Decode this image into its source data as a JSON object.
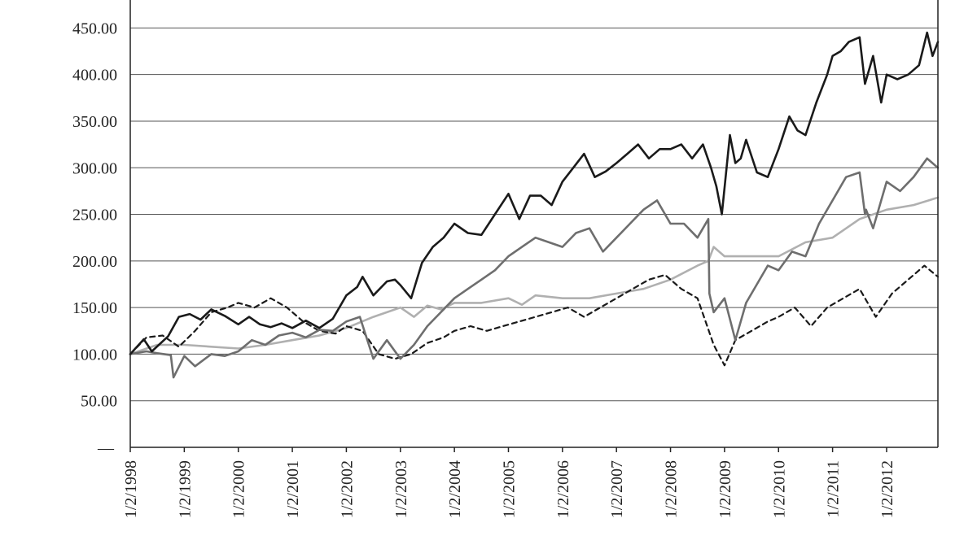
{
  "chart_data": {
    "type": "line",
    "title": "",
    "xlabel": "",
    "ylabel": "",
    "ylim": [
      0,
      480
    ],
    "grid": "horizontal",
    "y_ticks": [
      {
        "value": 0,
        "label": "—"
      },
      {
        "value": 50,
        "label": "50.00"
      },
      {
        "value": 100,
        "label": "100.00"
      },
      {
        "value": 150,
        "label": "150.00"
      },
      {
        "value": 200,
        "label": "200.00"
      },
      {
        "value": 250,
        "label": "250.00"
      },
      {
        "value": 300,
        "label": "300.00"
      },
      {
        "value": 350,
        "label": "350.00"
      },
      {
        "value": 400,
        "label": "400.00"
      },
      {
        "value": 450,
        "label": "450.00"
      }
    ],
    "x_ticks": [
      "1/2/1998",
      "1/2/1999",
      "1/2/2000",
      "1/2/2001",
      "1/2/2002",
      "1/2/2003",
      "1/2/2004",
      "1/2/2005",
      "1/2/2006",
      "1/2/2007",
      "1/2/2008",
      "1/2/2009",
      "1/2/2010",
      "1/2/2011",
      "1/2/2012"
    ],
    "xlim": [
      1998.0,
      2012.95
    ],
    "series": [
      {
        "color": "#1a1a1a",
        "style": "solid",
        "x": [
          1998.0,
          1998.25,
          1998.4,
          1998.7,
          1998.9,
          1999.1,
          1999.3,
          1999.5,
          1999.75,
          2000.0,
          2000.2,
          2000.4,
          2000.6,
          2000.8,
          2001.0,
          2001.25,
          2001.5,
          2001.75,
          2002.0,
          2002.2,
          2002.3,
          2002.5,
          2002.75,
          2002.9,
          2003.0,
          2003.2,
          2003.4,
          2003.6,
          2003.8,
          2004.0,
          2004.25,
          2004.5,
          2004.75,
          2005.0,
          2005.2,
          2005.4,
          2005.6,
          2005.8,
          2006.0,
          2006.2,
          2006.4,
          2006.6,
          2006.8,
          2007.0,
          2007.2,
          2007.4,
          2007.6,
          2007.8,
          2008.0,
          2008.2,
          2008.4,
          2008.6,
          2008.75,
          2008.85,
          2008.95,
          2009.1,
          2009.2,
          2009.3,
          2009.4,
          2009.6,
          2009.8,
          2010.0,
          2010.2,
          2010.35,
          2010.5,
          2010.7,
          2010.9,
          2011.0,
          2011.15,
          2011.3,
          2011.5,
          2011.6,
          2011.75,
          2011.9,
          2012.0,
          2012.2,
          2012.4,
          2012.6,
          2012.75,
          2012.85,
          2012.95
        ],
        "values": [
          100,
          116,
          103,
          119,
          140,
          143,
          137,
          148,
          141,
          132,
          140,
          132,
          129,
          133,
          128,
          136,
          128,
          138,
          163,
          172,
          183,
          163,
          178,
          180,
          174,
          160,
          198,
          215,
          225,
          240,
          230,
          228,
          250,
          272,
          245,
          270,
          270,
          260,
          285,
          300,
          315,
          290,
          296,
          305,
          315,
          325,
          310,
          320,
          320,
          325,
          310,
          325,
          300,
          280,
          250,
          335,
          305,
          310,
          330,
          295,
          290,
          320,
          355,
          340,
          335,
          370,
          400,
          420,
          425,
          435,
          440,
          390,
          420,
          370,
          400,
          395,
          400,
          410,
          445,
          420,
          435
        ]
      },
      {
        "color": "#6e6e6e",
        "style": "solid",
        "x": [
          1998.0,
          1998.3,
          1998.5,
          1998.75,
          1998.8,
          1999.0,
          1999.2,
          1999.5,
          1999.75,
          2000.0,
          2000.25,
          2000.5,
          2000.75,
          2001.0,
          2001.25,
          2001.5,
          2001.75,
          2002.0,
          2002.25,
          2002.5,
          2002.75,
          2003.0,
          2003.25,
          2003.5,
          2003.75,
          2004.0,
          2004.25,
          2004.5,
          2004.75,
          2005.0,
          2005.25,
          2005.5,
          2005.75,
          2006.0,
          2006.25,
          2006.5,
          2006.75,
          2007.0,
          2007.25,
          2007.5,
          2007.75,
          2008.0,
          2008.25,
          2008.5,
          2008.7,
          2008.72,
          2008.8,
          2009.0,
          2009.2,
          2009.4,
          2009.6,
          2009.8,
          2010.0,
          2010.25,
          2010.5,
          2010.75,
          2011.0,
          2011.25,
          2011.5,
          2011.6,
          2011.62,
          2011.75,
          2012.0,
          2012.25,
          2012.5,
          2012.75,
          2012.95
        ],
        "values": [
          100,
          103,
          101,
          99,
          75,
          98,
          87,
          100,
          98,
          103,
          115,
          110,
          120,
          123,
          118,
          126,
          125,
          135,
          140,
          95,
          115,
          95,
          110,
          130,
          145,
          160,
          170,
          180,
          190,
          205,
          215,
          225,
          220,
          215,
          230,
          235,
          210,
          225,
          240,
          255,
          265,
          240,
          240,
          225,
          245,
          165,
          145,
          160,
          115,
          155,
          175,
          195,
          190,
          210,
          205,
          240,
          265,
          290,
          295,
          250,
          255,
          235,
          285,
          275,
          290,
          310,
          300
        ]
      },
      {
        "color": "#b0b0b0",
        "style": "solid",
        "x": [
          1998.0,
          1998.5,
          1999.0,
          1999.5,
          2000.0,
          2000.5,
          2001.0,
          2001.5,
          2002.0,
          2002.5,
          2002.75,
          2003.0,
          2003.25,
          2003.5,
          2003.75,
          2004.0,
          2004.5,
          2005.0,
          2005.25,
          2005.5,
          2006.0,
          2006.5,
          2007.0,
          2007.5,
          2008.0,
          2008.5,
          2008.7,
          2008.8,
          2009.0,
          2009.5,
          2010.0,
          2010.5,
          2011.0,
          2011.5,
          2012.0,
          2012.5,
          2012.95
        ],
        "values": [
          100,
          110,
          110,
          108,
          106,
          110,
          115,
          120,
          128,
          140,
          145,
          150,
          140,
          152,
          148,
          155,
          155,
          160,
          153,
          163,
          160,
          160,
          165,
          170,
          180,
          195,
          200,
          215,
          205,
          205,
          205,
          220,
          225,
          245,
          255,
          260,
          268
        ]
      },
      {
        "color": "#1a1a1a",
        "style": "dashed",
        "x": [
          1998.0,
          1998.3,
          1998.6,
          1998.9,
          1999.2,
          1999.5,
          1999.8,
          2000.0,
          2000.3,
          2000.6,
          2000.9,
          2001.2,
          2001.5,
          2001.8,
          2002.0,
          2002.3,
          2002.6,
          2002.9,
          2003.2,
          2003.5,
          2003.8,
          2004.0,
          2004.3,
          2004.6,
          2004.9,
          2005.2,
          2005.5,
          2005.8,
          2006.1,
          2006.4,
          2006.7,
          2007.0,
          2007.3,
          2007.6,
          2007.9,
          2008.2,
          2008.5,
          2008.8,
          2009.0,
          2009.2,
          2009.5,
          2009.8,
          2010.0,
          2010.3,
          2010.6,
          2010.9,
          2011.2,
          2011.5,
          2011.8,
          2012.1,
          2012.4,
          2012.7,
          2012.95
        ],
        "values": [
          100,
          118,
          120,
          108,
          125,
          145,
          150,
          155,
          150,
          160,
          150,
          135,
          125,
          122,
          130,
          125,
          100,
          95,
          100,
          112,
          118,
          125,
          130,
          125,
          130,
          135,
          140,
          145,
          150,
          140,
          150,
          160,
          170,
          180,
          185,
          170,
          160,
          110,
          88,
          115,
          125,
          135,
          140,
          150,
          130,
          150,
          160,
          170,
          140,
          165,
          180,
          195,
          183
        ]
      }
    ]
  }
}
